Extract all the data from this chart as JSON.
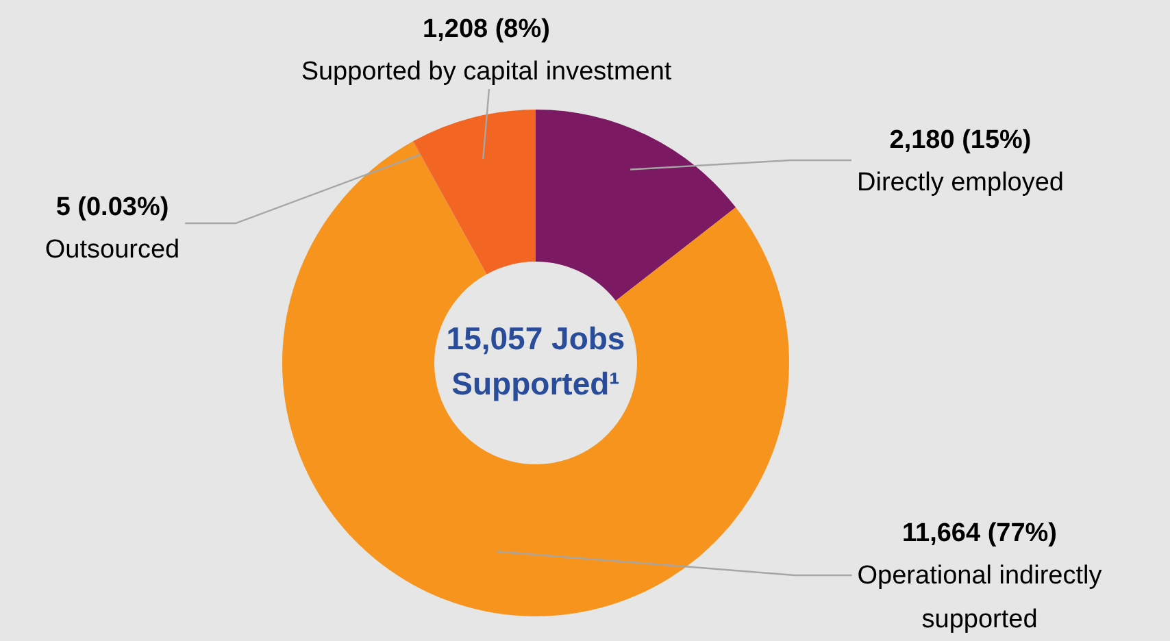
{
  "chart_data": {
    "type": "donut",
    "title": "15,057 Jobs Supported¹",
    "categories": [
      "Directly employed",
      "Operational indirectly supported",
      "Outsourced",
      "Supported by capital investment"
    ],
    "values": [
      2180,
      11664,
      5,
      1208
    ],
    "value_labels": [
      "2,180 (15%)",
      "11,664 (77%)",
      "5 (0.03%)",
      "1,208 (8%)"
    ],
    "colors": [
      "#7b1a63",
      "#f7941d",
      "#f26522",
      "#f26522"
    ],
    "legend": false
  }
}
